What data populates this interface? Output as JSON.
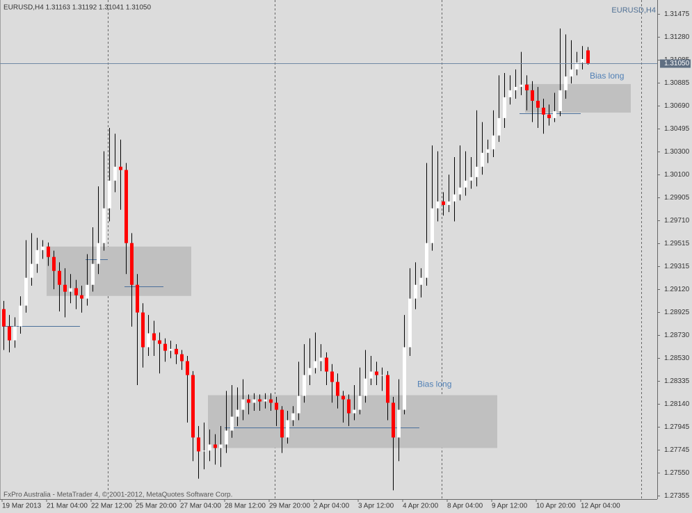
{
  "chart_data": {
    "type": "candlestick",
    "title": "EURUSD,H4  1.31163 1.31192 1.31041 1.31050",
    "symbol": "EURUSD,H4",
    "footer": "FxPro Australia - MetaTrader 4, © 2001-2012, MetaQuotes Software Corp.",
    "categories": [
      "19 Mar 2013",
      null,
      null,
      null,
      null,
      null,
      null,
      null,
      "21 Mar 04:00",
      null,
      null,
      null,
      null,
      null,
      null,
      null,
      "22 Mar 12:00",
      null,
      null,
      null,
      null,
      null,
      null,
      null,
      "25 Mar 20:00",
      null,
      null,
      null,
      null,
      null,
      null,
      null,
      "27 Mar 04:00",
      null,
      null,
      null,
      null,
      null,
      null,
      null,
      "28 Mar 12:00",
      null,
      null,
      null,
      null,
      null,
      null,
      null,
      "29 Mar 20:00",
      null,
      null,
      null,
      null,
      null,
      null,
      null,
      "2 Apr 04:00",
      null,
      null,
      null,
      null,
      null,
      null,
      null,
      "3 Apr 12:00",
      null,
      null,
      null,
      null,
      null,
      null,
      null,
      "4 Apr 20:00",
      null,
      null,
      null,
      null,
      null,
      null,
      null,
      "8 Apr 04:00",
      null,
      null,
      null,
      null,
      null,
      null,
      null,
      "9 Apr 12:00",
      null,
      null,
      null,
      null,
      null,
      null,
      null,
      "10 Apr 20:00",
      null,
      null,
      null,
      null,
      null,
      null,
      null,
      "12 Apr 04:00",
      null
    ],
    "open": [
      1.2895,
      1.28802,
      1.28683,
      1.28802,
      1.2898,
      1.29218,
      1.29337,
      1.29455,
      1.29485,
      1.29396,
      1.29277,
      1.29158,
      1.29099,
      1.29129,
      1.29069,
      1.2904,
      1.29158,
      1.29337,
      1.29515,
      1.29812,
      1.30049,
      1.30168,
      1.3014,
      1.29515,
      1.29158,
      1.28921,
      1.28624,
      1.28743,
      1.28683,
      1.28653,
      1.28594,
      1.2861,
      1.28564,
      1.28505,
      1.28386,
      1.27852,
      1.27733,
      1.2774,
      1.27792,
      1.27762,
      1.27792,
      1.27911,
      1.2803,
      1.28089,
      1.28178,
      1.28149,
      1.28178,
      1.2816,
      1.28178,
      1.28149,
      1.28089,
      1.27852,
      1.28,
      1.28059,
      1.28208,
      1.28386,
      1.28446,
      1.28505,
      1.28535,
      1.28416,
      1.28327,
      1.28208,
      1.28178,
      1.28059,
      1.28089,
      1.28208,
      1.28356,
      1.28416,
      1.28386,
      1.28386,
      1.28149,
      1.27852,
      1.28089,
      1.28624,
      1.2904,
      1.29158,
      1.29218,
      1.29515,
      1.29812,
      1.29871,
      1.29841,
      1.29871,
      1.29931,
      1.2999,
      1.30049,
      1.30079,
      1.30168,
      1.30287,
      1.30317,
      1.30435,
      1.30584,
      1.30762,
      1.30822,
      1.30851,
      1.3087,
      1.30822,
      1.30732,
      1.30673,
      1.30614,
      1.30584,
      1.30643,
      1.30822,
      1.3094,
      1.31,
      1.31059,
      1.31163
    ],
    "high": [
      1.2902,
      1.289,
      1.2888,
      1.2906,
      1.2954,
      1.296,
      1.2956,
      1.2954,
      1.2952,
      1.2945,
      1.2935,
      1.293,
      1.2925,
      1.292,
      1.2915,
      1.2942,
      1.2965,
      1.3,
      1.303,
      1.305,
      1.3045,
      1.304,
      1.302,
      1.296,
      1.2925,
      1.29,
      1.289,
      1.2885,
      1.2875,
      1.287,
      1.2868,
      1.2865,
      1.286,
      1.2855,
      1.2842,
      1.2795,
      1.2798,
      1.2792,
      1.2788,
      1.2795,
      1.2825,
      1.283,
      1.2828,
      1.2835,
      1.2822,
      1.2823,
      1.2822,
      1.2823,
      1.2823,
      1.282,
      1.2812,
      1.2808,
      1.2812,
      1.285,
      1.2865,
      1.287,
      1.2875,
      1.2865,
      1.2858,
      1.2848,
      1.284,
      1.2825,
      1.2822,
      1.283,
      1.2845,
      1.286,
      1.2855,
      1.285,
      1.2845,
      1.2842,
      1.282,
      1.2835,
      1.289,
      1.293,
      1.2935,
      1.293,
      1.302,
      1.3035,
      1.303,
      1.2995,
      1.301,
      1.3025,
      1.3035,
      1.303,
      1.3025,
      1.3065,
      1.3055,
      1.304,
      1.3065,
      1.3095,
      1.3097,
      1.3095,
      1.31,
      1.3115,
      1.3095,
      1.309,
      1.3085,
      1.3075,
      1.307,
      1.308,
      1.3135,
      1.313,
      1.3125,
      1.3115,
      1.312,
      1.31192
    ],
    "low": [
      1.286,
      1.2858,
      1.2862,
      1.2874,
      1.2892,
      1.2915,
      1.2926,
      1.2938,
      1.2932,
      1.2912,
      1.2893,
      1.2888,
      1.29,
      1.2895,
      1.2892,
      1.2898,
      1.291,
      1.2925,
      1.2945,
      1.297,
      1.2995,
      1.298,
      1.2925,
      1.288,
      1.283,
      1.2845,
      1.2855,
      1.2855,
      1.284,
      1.285,
      1.2853,
      1.2848,
      1.2843,
      1.2798,
      1.2765,
      1.275,
      1.2758,
      1.2765,
      1.2762,
      1.276,
      1.2772,
      1.2785,
      1.2795,
      1.28,
      1.2805,
      1.2808,
      1.2808,
      1.281,
      1.2808,
      1.2795,
      1.2772,
      1.278,
      1.2795,
      1.28,
      1.2815,
      1.283,
      1.284,
      1.2842,
      1.283,
      1.2815,
      1.281,
      1.2798,
      1.2795,
      1.28,
      1.2805,
      1.2815,
      1.283,
      1.283,
      1.2825,
      1.28,
      1.274,
      1.2765,
      1.2805,
      1.2855,
      1.2895,
      1.2905,
      1.2915,
      1.2945,
      1.297,
      1.2975,
      1.2978,
      1.297,
      1.2988,
      1.2992,
      1.2998,
      1.3,
      1.301,
      1.302,
      1.3025,
      1.3038,
      1.305,
      1.307,
      1.3075,
      1.3078,
      1.3065,
      1.3055,
      1.305,
      1.3045,
      1.3052,
      1.3055,
      1.306,
      1.3075,
      1.3088,
      1.3095,
      1.31,
      1.31041
    ],
    "close": [
      1.28802,
      1.28683,
      1.28802,
      1.2898,
      1.29218,
      1.29337,
      1.29455,
      1.29485,
      1.29396,
      1.29277,
      1.29158,
      1.29099,
      1.29129,
      1.29069,
      1.2904,
      1.29158,
      1.29337,
      1.29515,
      1.29812,
      1.30049,
      1.30168,
      1.3014,
      1.29515,
      1.29158,
      1.28921,
      1.28624,
      1.28743,
      1.28683,
      1.28653,
      1.28594,
      1.2861,
      1.28564,
      1.28505,
      1.28386,
      1.27852,
      1.27733,
      1.2774,
      1.27792,
      1.27762,
      1.27792,
      1.27911,
      1.2803,
      1.28089,
      1.28178,
      1.28149,
      1.28178,
      1.2816,
      1.28178,
      1.28149,
      1.28089,
      1.27852,
      1.28,
      1.28059,
      1.28208,
      1.28386,
      1.28446,
      1.28505,
      1.28535,
      1.28416,
      1.28327,
      1.28208,
      1.28178,
      1.28059,
      1.28089,
      1.28208,
      1.28356,
      1.28416,
      1.28386,
      1.28386,
      1.28149,
      1.27852,
      1.28089,
      1.28624,
      1.2904,
      1.29158,
      1.29218,
      1.29515,
      1.29812,
      1.29871,
      1.29841,
      1.29871,
      1.29931,
      1.2999,
      1.30049,
      1.30079,
      1.30168,
      1.30287,
      1.30317,
      1.30435,
      1.30584,
      1.30762,
      1.30822,
      1.30851,
      1.3087,
      1.30822,
      1.30732,
      1.30673,
      1.30614,
      1.30584,
      1.30643,
      1.30822,
      1.3094,
      1.31,
      1.31059,
      1.31089,
      1.3105
    ],
    "up_color": "#ffffff",
    "down_color": "#ff0000",
    "ylim": [
      1.27325,
      1.31594
    ],
    "yticks": [
      {
        "value": 1.31475,
        "label": "1.31475"
      },
      {
        "value": 1.3128,
        "label": "1.31280"
      },
      {
        "value": 1.31085,
        "label": "1.31085"
      },
      {
        "value": 1.30885,
        "label": "1.30885"
      },
      {
        "value": 1.3069,
        "label": "1.30690"
      },
      {
        "value": 1.30495,
        "label": "1.30495"
      },
      {
        "value": 1.303,
        "label": "1.30300"
      },
      {
        "value": 1.301,
        "label": "1.30100"
      },
      {
        "value": 1.29905,
        "label": "1.29905"
      },
      {
        "value": 1.2971,
        "label": "1.29710"
      },
      {
        "value": 1.29515,
        "label": "1.29515"
      },
      {
        "value": 1.29315,
        "label": "1.29315"
      },
      {
        "value": 1.2912,
        "label": "1.29120"
      },
      {
        "value": 1.28925,
        "label": "1.28925"
      },
      {
        "value": 1.2873,
        "label": "1.28730"
      },
      {
        "value": 1.2853,
        "label": "1.28530"
      },
      {
        "value": 1.28335,
        "label": "1.28335"
      },
      {
        "value": 1.2814,
        "label": "1.28140"
      },
      {
        "value": 1.27945,
        "label": "1.27945"
      },
      {
        "value": 1.27745,
        "label": "1.27745"
      },
      {
        "value": 1.2755,
        "label": "1.27550"
      },
      {
        "value": 1.27355,
        "label": "1.27355"
      }
    ],
    "current_price": {
      "value": 1.3105,
      "label": "1.31050"
    },
    "zones": [
      {
        "top": 1.29485,
        "bottom": 1.29063
      },
      {
        "top": 1.28214,
        "bottom": 1.27762,
        "label": "Bias long"
      },
      {
        "top": 1.30875,
        "bottom": 1.30631,
        "label": "Bias long"
      }
    ],
    "levels": [
      1.28808,
      1.29378,
      1.29146,
      1.27935,
      1.30625
    ]
  }
}
